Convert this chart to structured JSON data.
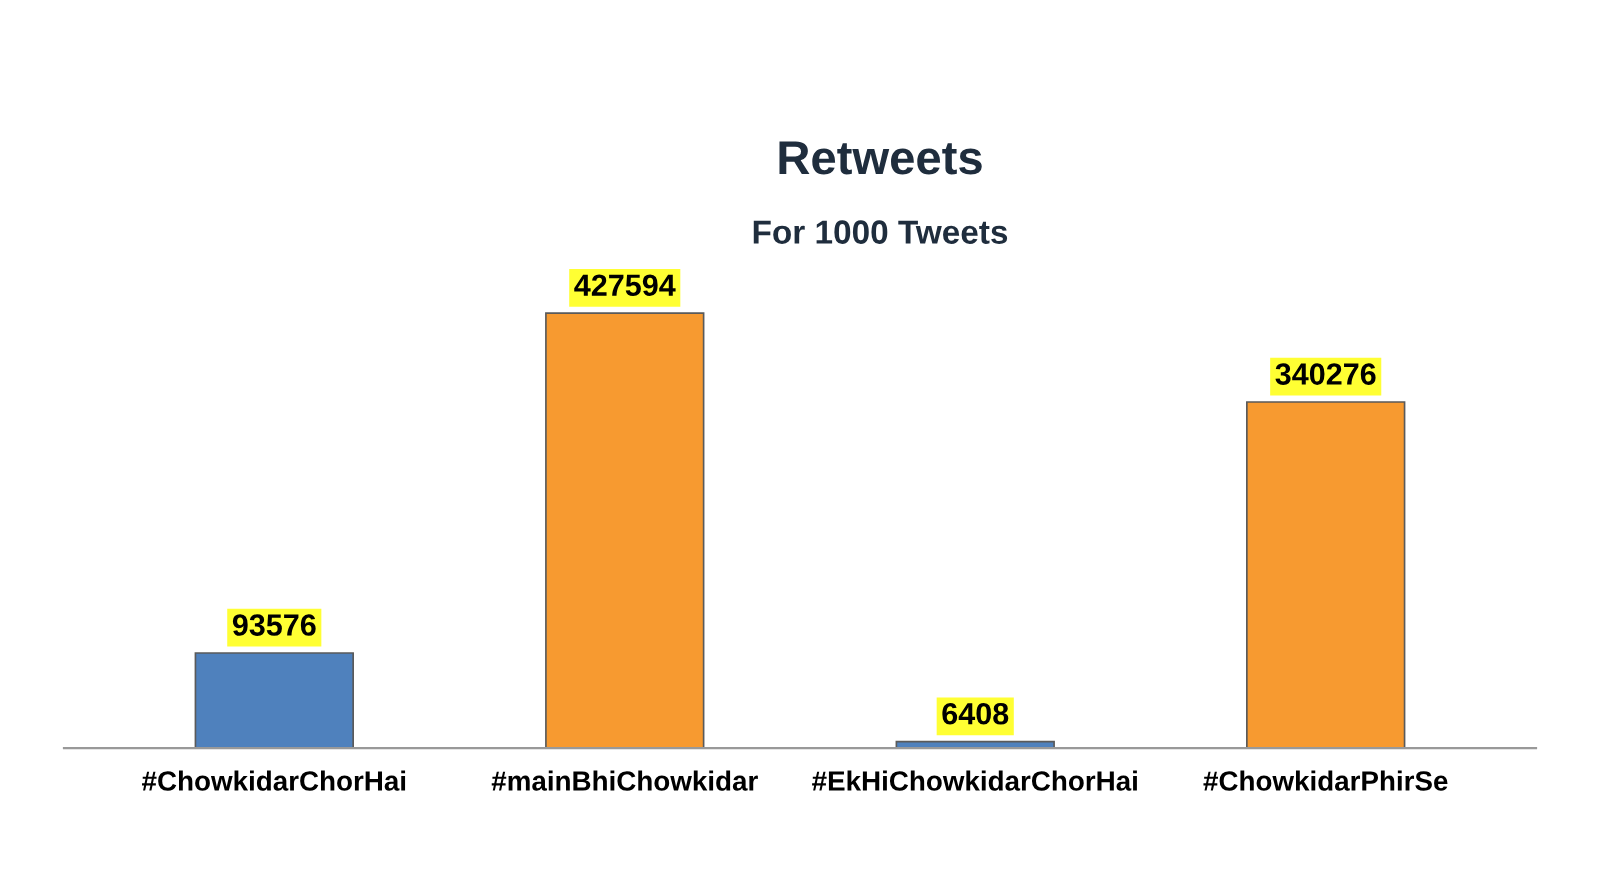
{
  "chart_data": {
    "type": "bar",
    "title": "Retweets",
    "subtitle": "For 1000 Tweets",
    "categories": [
      "#ChowkidarChorHai",
      "#mainBhiChowkidar",
      "#EkHiChowkidarChorHai",
      "#ChowkidarPhirSe"
    ],
    "values": [
      93576,
      427594,
      6408,
      340276
    ],
    "colors": [
      "#4f81bd",
      "#f79a30",
      "#4f81bd",
      "#f79a30"
    ],
    "data_labels": true,
    "grid": false,
    "legend": false
  }
}
